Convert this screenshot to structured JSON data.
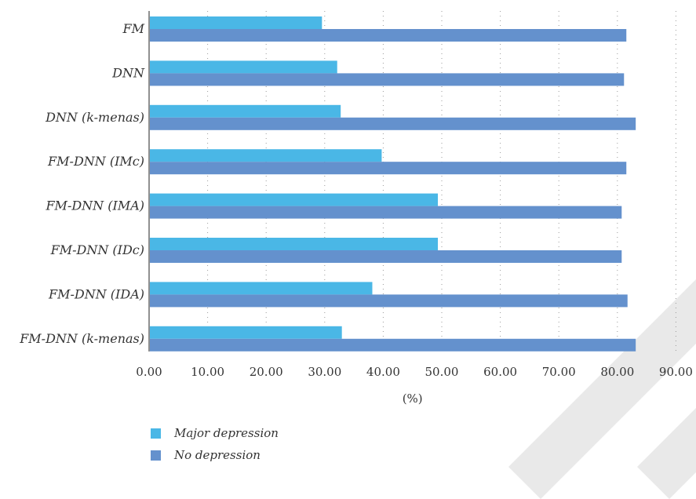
{
  "chart_data": {
    "type": "bar",
    "orientation": "horizontal",
    "categories": [
      "FM",
      "DNN",
      "DNN (k-menas)",
      "FM-DNN (IMc)",
      "FM-DNN (IMA)",
      "FM-DNN (IDc)",
      "FM-DNN (IDA)",
      "FM-DNN (k-menas)"
    ],
    "series": [
      {
        "name": "Major depression",
        "color": "#4ab7e6",
        "values": [
          29.4,
          32.0,
          32.6,
          39.6,
          49.2,
          49.2,
          38.0,
          32.8
        ]
      },
      {
        "name": "No depression",
        "color": "#6491cd",
        "values": [
          81.4,
          81.0,
          83.0,
          81.4,
          80.6,
          80.6,
          81.6,
          83.0
        ]
      }
    ],
    "xlabel": "(%)",
    "xlim": [
      0,
      90
    ],
    "xticks": [
      "0.00",
      "10.00",
      "20.00",
      "30.00",
      "40.00",
      "50.00",
      "60.00",
      "70.00",
      "80.00",
      "90.00"
    ],
    "grid": "vertical dotted",
    "legend": "bottom-left"
  }
}
